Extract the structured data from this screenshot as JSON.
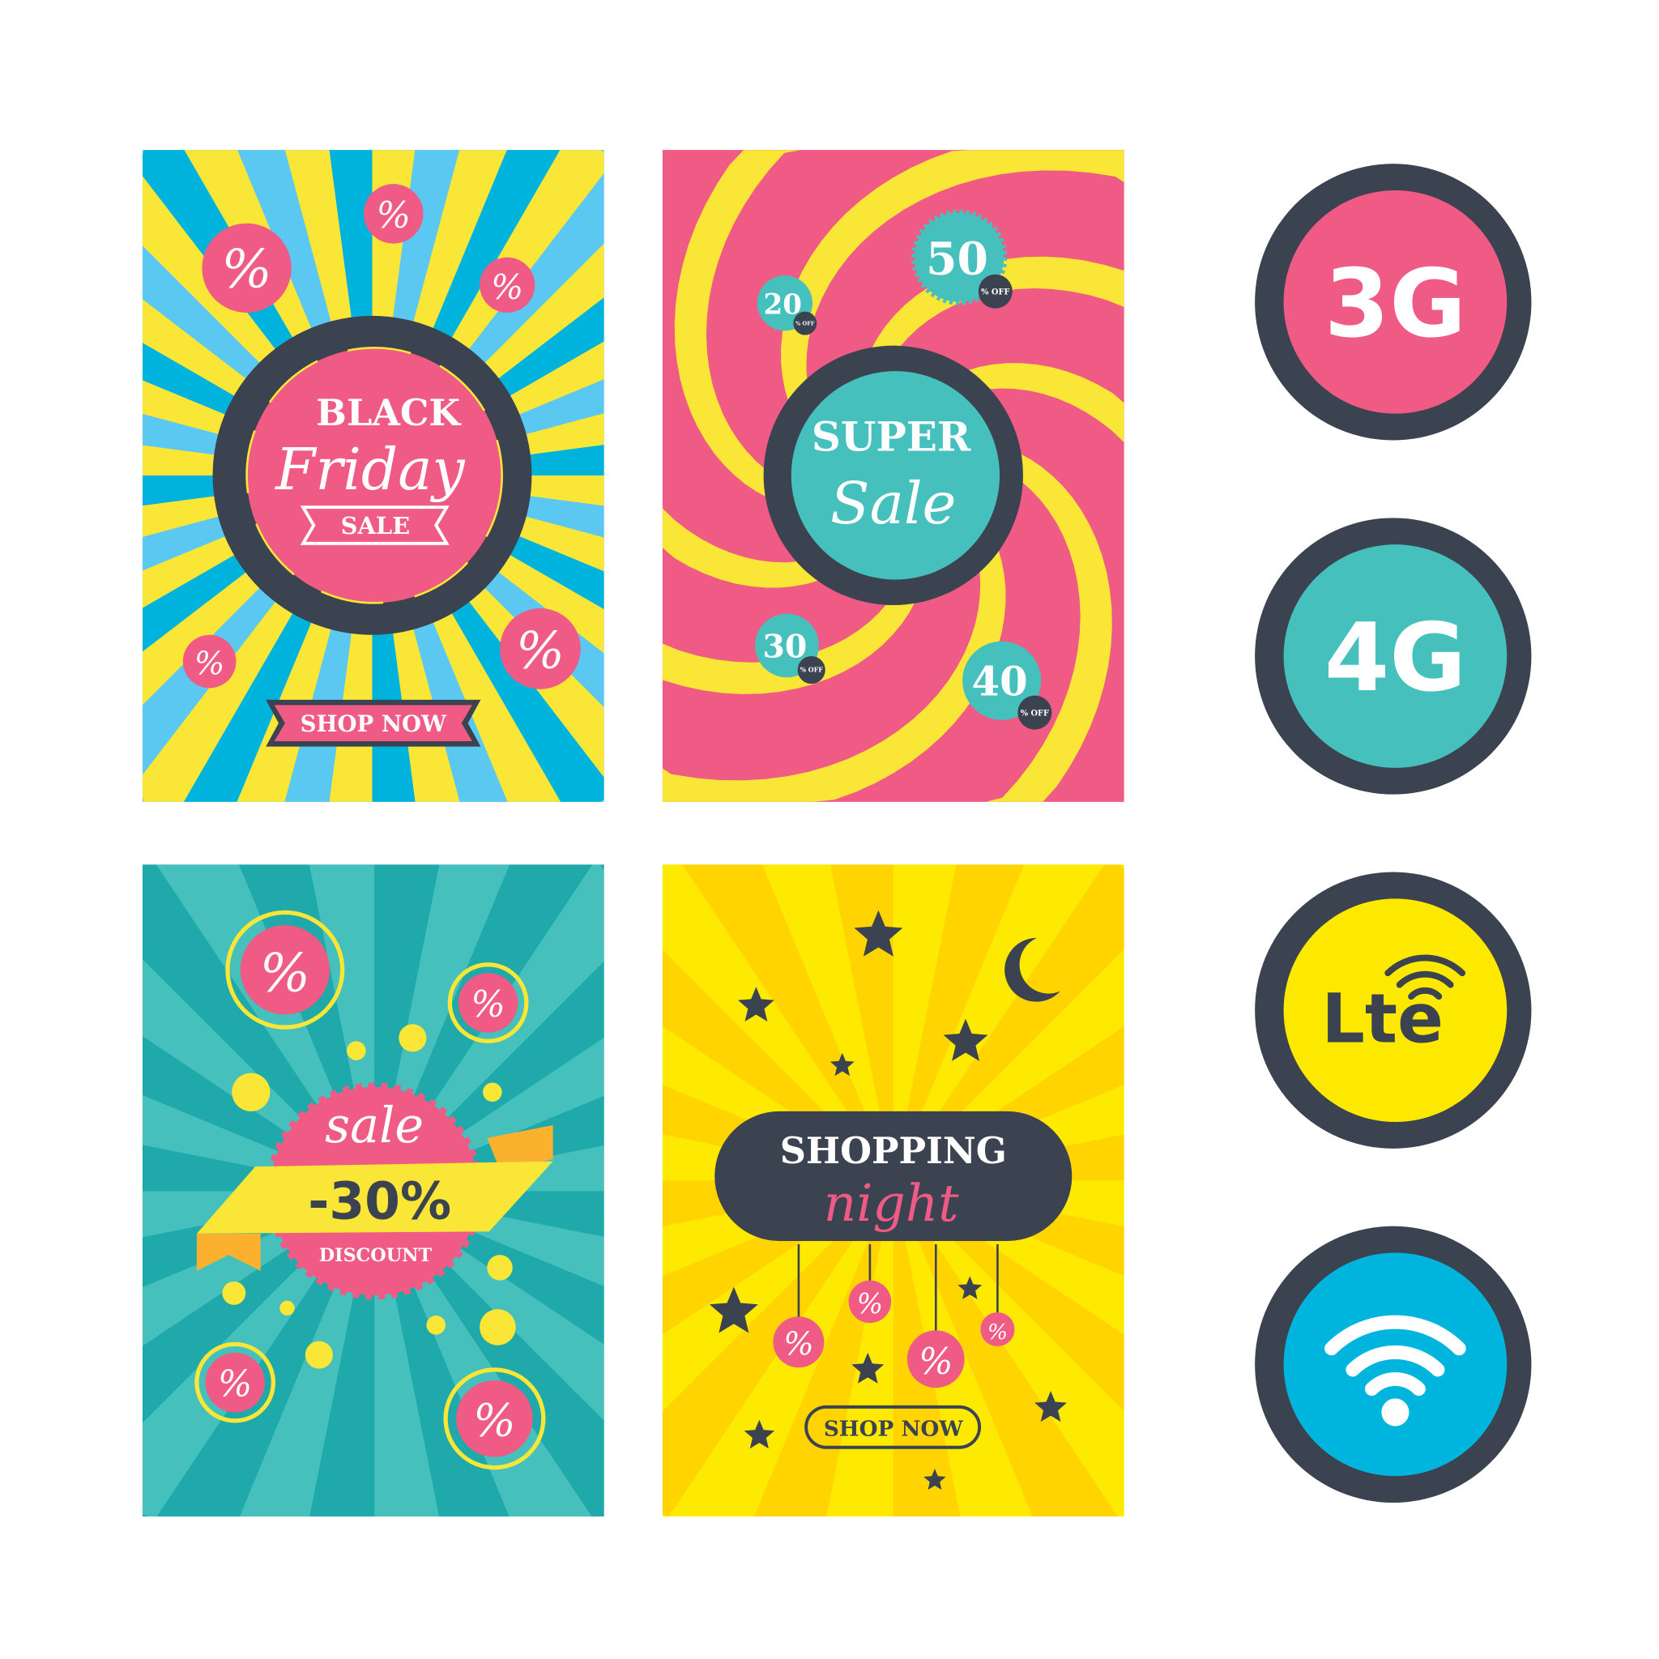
{
  "colors": {
    "pink": "#ef5b84",
    "yellow": "#f9e636",
    "light_blue": "#5bc8f2",
    "blue": "#00b3dc",
    "teal": "#45c0bd",
    "dark_teal": "#1fa9ab",
    "bright_yellow": "#fdea00",
    "gold": "#ffd400",
    "orange": "#fbb12d",
    "dark": "#3b4250",
    "white": "#ffffff"
  },
  "posters": {
    "black_friday": {
      "line1": "BLACK",
      "line2": "Friday",
      "line3": "SALE",
      "button": "SHOP NOW",
      "percent": "%"
    },
    "super_sale": {
      "line1": "SUPER",
      "line2": "Sale",
      "badges": [
        {
          "value": "50",
          "suffix": "% OFF"
        },
        {
          "value": "20",
          "suffix": "% OFF"
        },
        {
          "value": "30",
          "suffix": "% OFF"
        },
        {
          "value": "40",
          "suffix": "% OFF"
        }
      ],
      "percent_label": "%",
      "off_label": "OFF"
    },
    "discount": {
      "line1": "sale",
      "line2": "-30%",
      "line3": "DISCOUNT",
      "percent": "%"
    },
    "shopping_night": {
      "line1": "SHOPPING",
      "line2": "night",
      "button": "SHOP NOW",
      "percent": "%"
    }
  },
  "icons": [
    {
      "label": "3G",
      "icon": "3g-icon"
    },
    {
      "label": "4G",
      "icon": "4g-icon"
    },
    {
      "label": "Lte",
      "icon": "lte-icon"
    },
    {
      "label": "",
      "icon": "wifi-icon"
    }
  ]
}
